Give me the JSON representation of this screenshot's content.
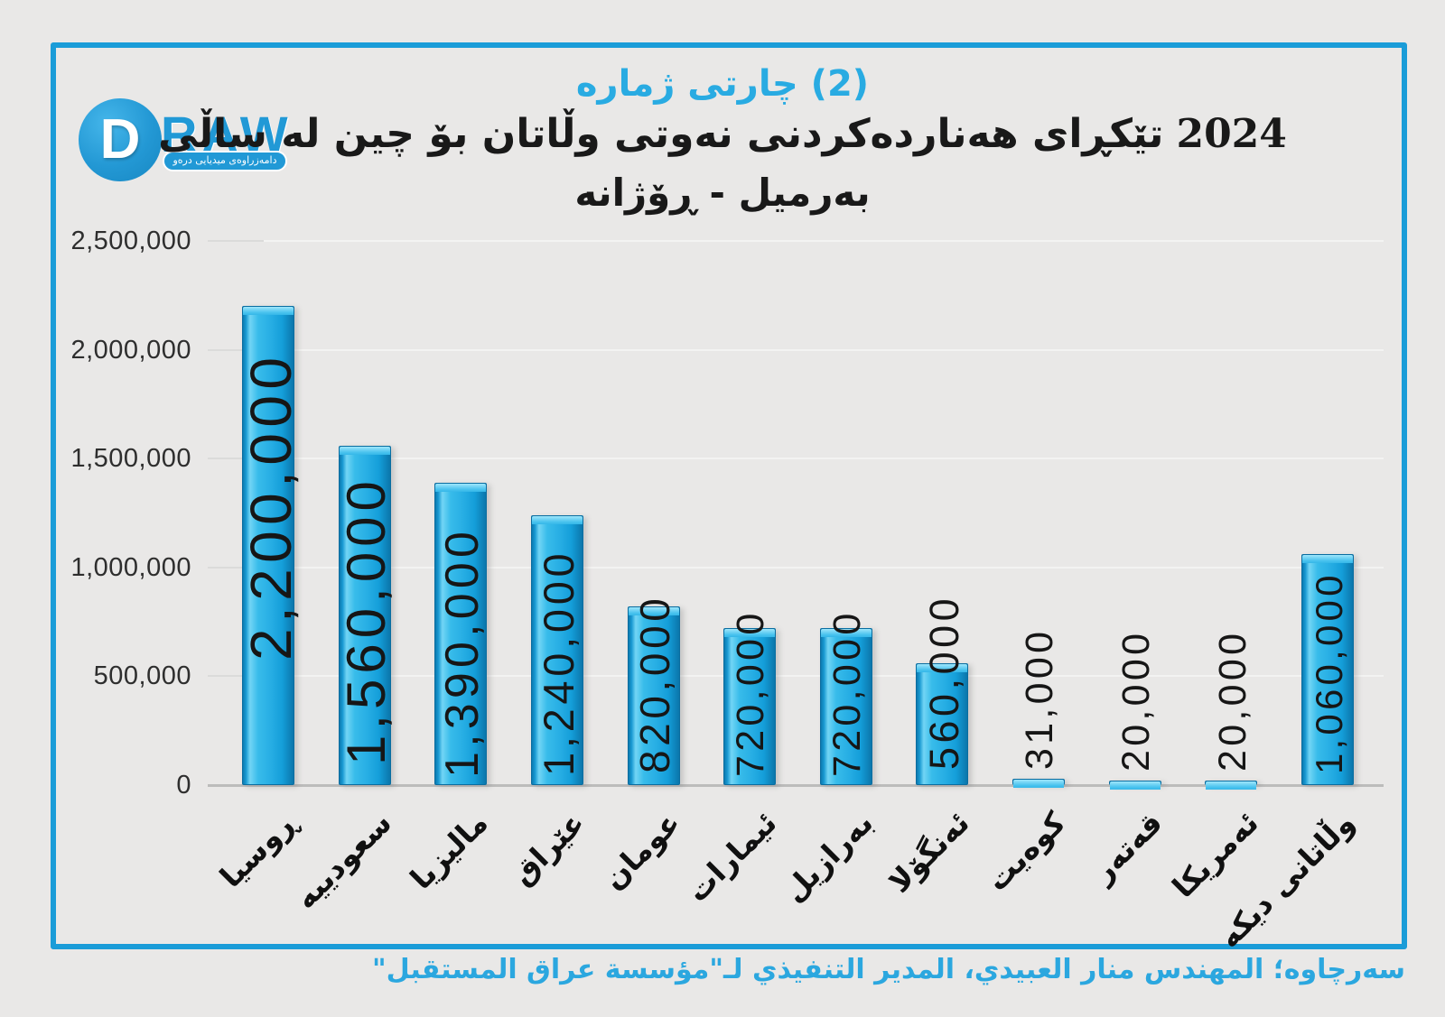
{
  "logo": {
    "initial": "D",
    "wordmark": "RAW",
    "tagline": "دامەزراوەی میدیایی درەو"
  },
  "header": {
    "title": "چارتی ژمارە",
    "title_number": "(2)",
    "subtitle": "تێکڕای هەناردەکردنی نەوتی وڵاتان بۆ چین لە ساڵی",
    "subtitle_year": "2024",
    "unit_line": "بەرمیل - ڕۆژانە"
  },
  "chart_data": {
    "type": "bar",
    "title": "چارتی ژمارە (2)",
    "subtitle": "تێکڕای هەناردەکردنی نەوتی وڵاتان بۆ چین لە ساڵی 2024",
    "unit": "بەرمیل - ڕۆژانە",
    "categories": [
      "ڕوسیا",
      "سعودییە",
      "مالیزیا",
      "عێراق",
      "عومان",
      "ئیمارات",
      "بەرازیل",
      "ئەنگۆلا",
      "کوەیت",
      "قەتەر",
      "ئەمریکا",
      "وڵاتانی دیکە"
    ],
    "values": [
      2200000,
      1560000,
      1390000,
      1240000,
      820000,
      720000,
      720000,
      560000,
      31000,
      20000,
      20000,
      1060000
    ],
    "value_labels": [
      "2,200,000",
      "1,560,000",
      "1,390,000",
      "1,240,000",
      "820,000",
      "720,000",
      "720,000",
      "560,000",
      "31,000",
      "20,000",
      "20,000",
      "1,060,000"
    ],
    "y_axis": {
      "ticks": [
        "2,500,000",
        "2,000,000",
        "1,500,000",
        "1,000,000",
        "500,000",
        "0"
      ],
      "max": 2500000,
      "min": 0
    },
    "grid": true,
    "legend": false,
    "bar_color": "#29AEE4"
  },
  "footer": {
    "source": "سەرچاوە؛ المهندس منار العبيدي، المدير التنفيذي لـ\"مؤسسة عراق المستقبل\""
  },
  "colors": {
    "background": "#E9E8E7",
    "frame": "#1A9CD8",
    "title": "#29ABE2",
    "text": "#191919",
    "source": "#2BA7DF",
    "bar": "#29AEE4"
  }
}
